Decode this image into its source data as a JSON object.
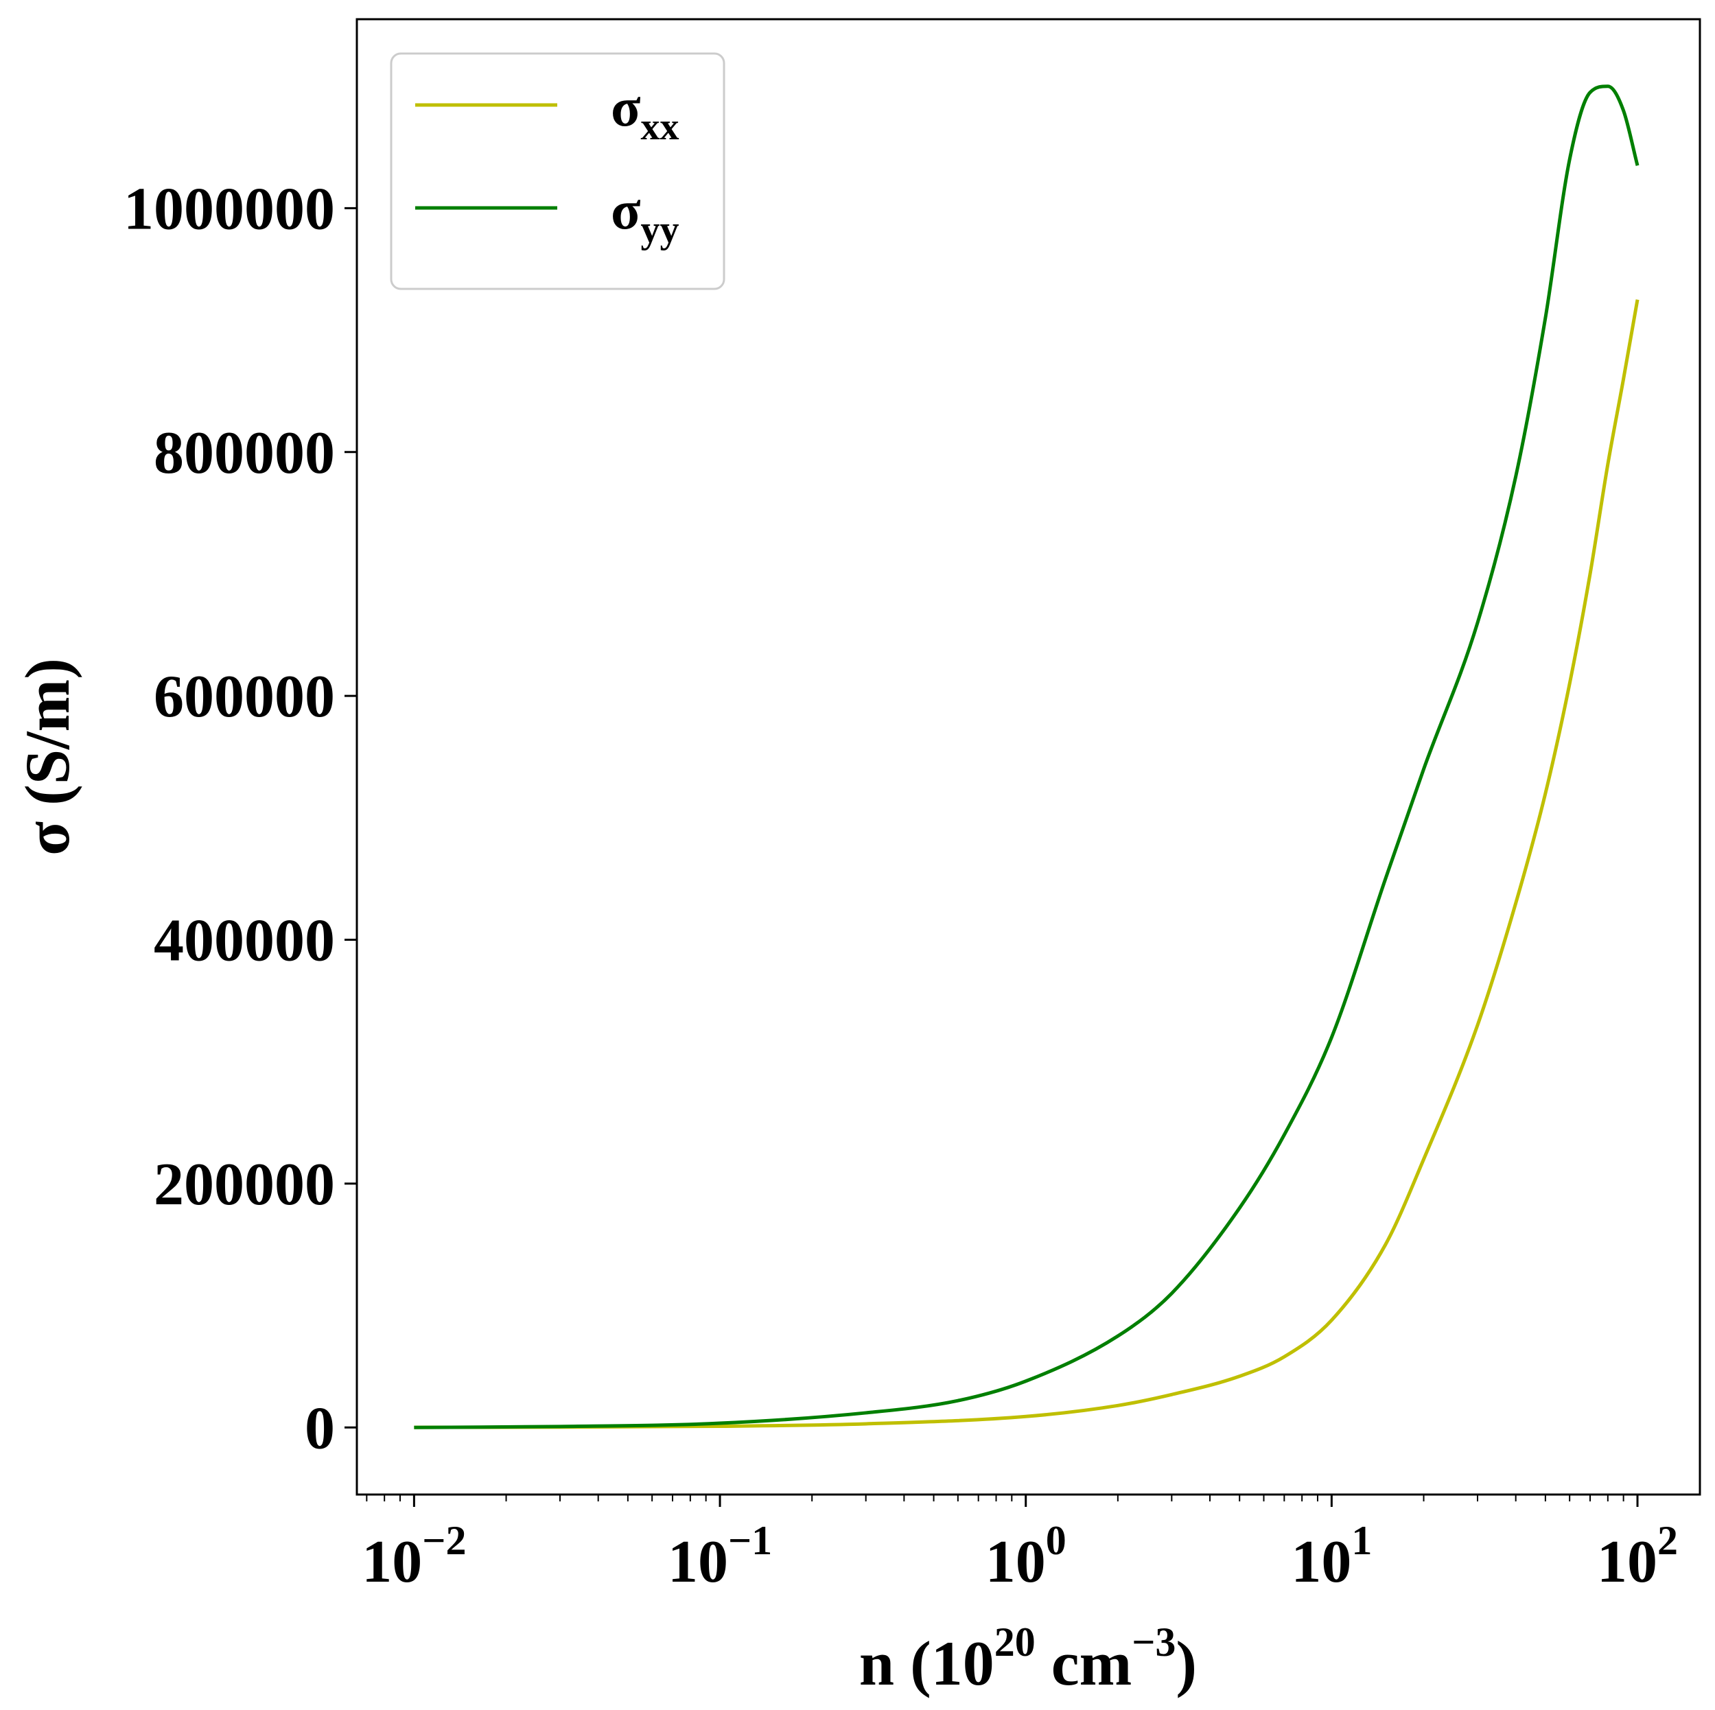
{
  "chart_data": {
    "type": "line",
    "xscale": "log",
    "xlim": [
      0.0065,
      160
    ],
    "ylim": [
      -55000,
      1155000
    ],
    "grid": false,
    "legend_position": "top-left",
    "xlabel": {
      "main": "n (10",
      "sup1": "20",
      "mid": " cm",
      "sup2": "−3",
      "end": ")"
    },
    "ylabel": "σ (S/m)",
    "x_ticks": [
      {
        "value": 0.01,
        "base": "10",
        "exp": "−2"
      },
      {
        "value": 0.1,
        "base": "10",
        "exp": "−1"
      },
      {
        "value": 1,
        "base": "10",
        "exp": "0"
      },
      {
        "value": 10,
        "base": "10",
        "exp": "1"
      },
      {
        "value": 100,
        "base": "10",
        "exp": "2"
      }
    ],
    "y_ticks": [
      {
        "value": 0,
        "label": "0"
      },
      {
        "value": 200000,
        "label": "200000"
      },
      {
        "value": 400000,
        "label": "400000"
      },
      {
        "value": 600000,
        "label": "600000"
      },
      {
        "value": 800000,
        "label": "800000"
      },
      {
        "value": 1000000,
        "label": "1000000"
      }
    ],
    "series": [
      {
        "name_main": "σ",
        "name_sub": "xx",
        "color": "#bfbf00",
        "x": [
          0.01,
          0.03,
          0.1,
          0.3,
          1,
          2,
          3,
          5,
          7,
          10,
          15,
          20,
          30,
          40,
          50,
          60,
          70,
          80,
          90,
          100
        ],
        "y": [
          100,
          300,
          1000,
          3000,
          9000,
          18000,
          27000,
          42000,
          58000,
          88000,
          150000,
          220000,
          330000,
          430000,
          520000,
          610000,
          700000,
          790000,
          860000,
          925000
        ]
      },
      {
        "name_main": "σ",
        "name_sub": "yy",
        "color": "#007f00",
        "x": [
          0.01,
          0.03,
          0.1,
          0.3,
          0.6,
          1,
          2,
          3,
          5,
          7,
          10,
          15,
          20,
          30,
          40,
          50,
          60,
          70,
          80,
          90,
          100
        ],
        "y": [
          0,
          800,
          3500,
          12000,
          22000,
          38000,
          75000,
          110000,
          180000,
          240000,
          320000,
          450000,
          540000,
          660000,
          780000,
          910000,
          1040000,
          1095000,
          1100000,
          1080000,
          1035000
        ]
      }
    ]
  }
}
